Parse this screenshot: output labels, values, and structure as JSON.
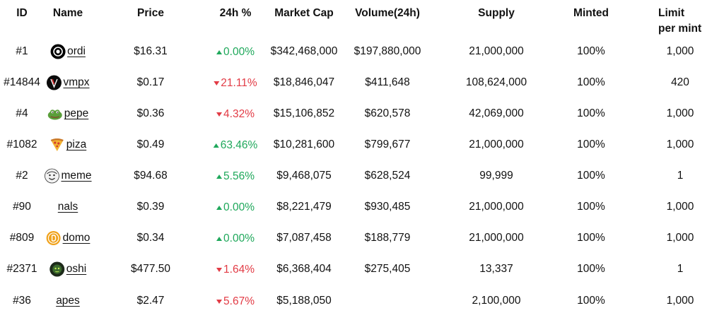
{
  "headers": {
    "id": "ID",
    "name": "Name",
    "price": "Price",
    "change": "24h %",
    "market_cap": "Market Cap",
    "volume": "Volume(24h)",
    "supply": "Supply",
    "minted": "Minted",
    "limit": "Limit per mint"
  },
  "colors": {
    "up": "#1fa85b",
    "down": "#e23b45"
  },
  "rows": [
    {
      "id": "#1",
      "name": "ordi",
      "icon": "ordi-logo-icon",
      "price": "$16.31",
      "change": "0.00%",
      "dir": "up",
      "market_cap": "$342,468,000",
      "volume": "$197,880,000",
      "supply": "21,000,000",
      "minted": "100%",
      "limit": "1,000"
    },
    {
      "id": "#14844",
      "name": "vmpx",
      "icon": "vmpx-logo-icon",
      "price": "$0.17",
      "change": "21.11%",
      "dir": "down",
      "market_cap": "$18,846,047",
      "volume": "$411,648",
      "supply": "108,624,000",
      "minted": "100%",
      "limit": "420"
    },
    {
      "id": "#4",
      "name": "pepe",
      "icon": "pepe-frog-icon",
      "price": "$0.36",
      "change": "4.32%",
      "dir": "down",
      "market_cap": "$15,106,852",
      "volume": "$620,578",
      "supply": "42,069,000",
      "minted": "100%",
      "limit": "1,000"
    },
    {
      "id": "#1082",
      "name": "piza",
      "icon": "pizza-slice-icon",
      "price": "$0.49",
      "change": "63.46%",
      "dir": "up",
      "market_cap": "$10,281,600",
      "volume": "$799,677",
      "supply": "21,000,000",
      "minted": "100%",
      "limit": "1,000"
    },
    {
      "id": "#2",
      "name": "meme",
      "icon": "meme-face-icon",
      "price": "$94.68",
      "change": "5.56%",
      "dir": "up",
      "market_cap": "$9,468,075",
      "volume": "$628,524",
      "supply": "99,999",
      "minted": "100%",
      "limit": "1"
    },
    {
      "id": "#90",
      "name": "nals",
      "icon": "",
      "price": "$0.39",
      "change": "0.00%",
      "dir": "up",
      "market_cap": "$8,221,479",
      "volume": "$930,485",
      "supply": "21,000,000",
      "minted": "100%",
      "limit": "1,000"
    },
    {
      "id": "#809",
      "name": "domo",
      "icon": "domo-coin-icon",
      "price": "$0.34",
      "change": "0.00%",
      "dir": "up",
      "market_cap": "$7,087,458",
      "volume": "$188,779",
      "supply": "21,000,000",
      "minted": "100%",
      "limit": "1,000"
    },
    {
      "id": "#2371",
      "name": "oshi",
      "icon": "oshi-avatar-icon",
      "price": "$477.50",
      "change": "1.64%",
      "dir": "down",
      "market_cap": "$6,368,404",
      "volume": "$275,405",
      "supply": "13,337",
      "minted": "100%",
      "limit": "1"
    },
    {
      "id": "#36",
      "name": "apes",
      "icon": "",
      "price": "$2.47",
      "change": "5.67%",
      "dir": "down",
      "market_cap": "$5,188,050",
      "volume": "",
      "supply": "2,100,000",
      "minted": "100%",
      "limit": "1,000"
    }
  ]
}
